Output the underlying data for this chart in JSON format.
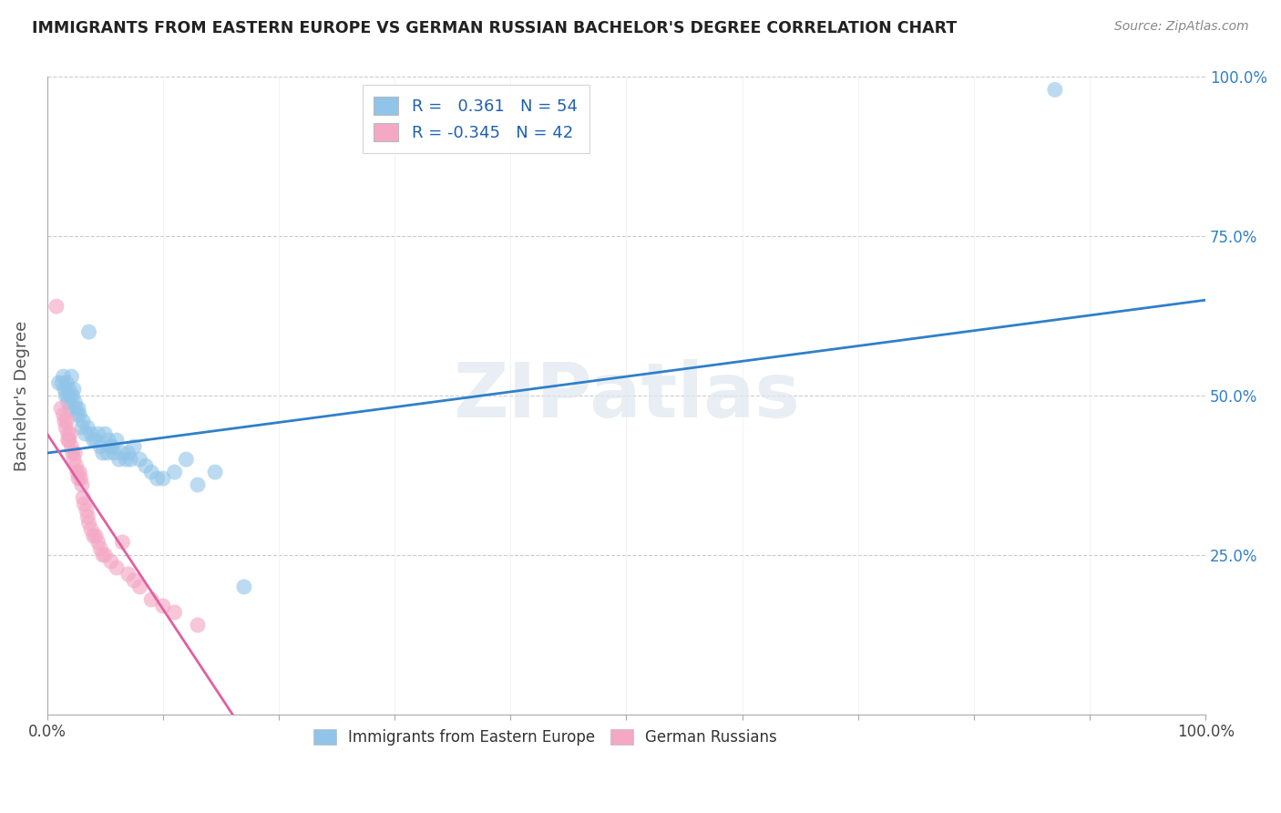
{
  "title": "IMMIGRANTS FROM EASTERN EUROPE VS GERMAN RUSSIAN BACHELOR'S DEGREE CORRELATION CHART",
  "source": "Source: ZipAtlas.com",
  "ylabel": "Bachelor's Degree",
  "xlim": [
    0,
    1.0
  ],
  "ylim": [
    0,
    1.0
  ],
  "yticks": [
    0.0,
    0.25,
    0.5,
    0.75,
    1.0
  ],
  "ytick_labels": [
    "",
    "25.0%",
    "50.0%",
    "75.0%",
    "100.0%"
  ],
  "xticks": [
    0.0,
    0.1,
    0.2,
    0.3,
    0.4,
    0.5,
    0.6,
    0.7,
    0.8,
    0.9,
    1.0
  ],
  "xtick_labels": [
    "0.0%",
    "",
    "",
    "",
    "",
    "",
    "",
    "",
    "",
    "",
    "100.0%"
  ],
  "R_blue": 0.361,
  "N_blue": 54,
  "R_pink": -0.345,
  "N_pink": 42,
  "watermark": "ZIPatlas",
  "blue_color": "#90c4e8",
  "pink_color": "#f4a8c4",
  "blue_line_color": "#3080c8",
  "pink_line_color": "#e060a0",
  "blue_scatter": [
    [
      0.01,
      0.52
    ],
    [
      0.013,
      0.52
    ],
    [
      0.014,
      0.53
    ],
    [
      0.015,
      0.51
    ],
    [
      0.016,
      0.5
    ],
    [
      0.017,
      0.52
    ],
    [
      0.018,
      0.5
    ],
    [
      0.018,
      0.49
    ],
    [
      0.019,
      0.51
    ],
    [
      0.02,
      0.5
    ],
    [
      0.02,
      0.48
    ],
    [
      0.021,
      0.53
    ],
    [
      0.022,
      0.5
    ],
    [
      0.023,
      0.51
    ],
    [
      0.024,
      0.49
    ],
    [
      0.025,
      0.48
    ],
    [
      0.026,
      0.47
    ],
    [
      0.027,
      0.48
    ],
    [
      0.028,
      0.47
    ],
    [
      0.03,
      0.45
    ],
    [
      0.031,
      0.46
    ],
    [
      0.033,
      0.44
    ],
    [
      0.035,
      0.45
    ],
    [
      0.036,
      0.6
    ],
    [
      0.038,
      0.44
    ],
    [
      0.04,
      0.43
    ],
    [
      0.042,
      0.43
    ],
    [
      0.044,
      0.44
    ],
    [
      0.046,
      0.42
    ],
    [
      0.048,
      0.41
    ],
    [
      0.05,
      0.44
    ],
    [
      0.052,
      0.41
    ],
    [
      0.053,
      0.43
    ],
    [
      0.055,
      0.42
    ],
    [
      0.056,
      0.42
    ],
    [
      0.058,
      0.41
    ],
    [
      0.06,
      0.43
    ],
    [
      0.062,
      0.4
    ],
    [
      0.065,
      0.41
    ],
    [
      0.068,
      0.4
    ],
    [
      0.07,
      0.41
    ],
    [
      0.072,
      0.4
    ],
    [
      0.075,
      0.42
    ],
    [
      0.08,
      0.4
    ],
    [
      0.085,
      0.39
    ],
    [
      0.09,
      0.38
    ],
    [
      0.095,
      0.37
    ],
    [
      0.1,
      0.37
    ],
    [
      0.11,
      0.38
    ],
    [
      0.12,
      0.4
    ],
    [
      0.13,
      0.36
    ],
    [
      0.145,
      0.38
    ],
    [
      0.17,
      0.2
    ],
    [
      0.87,
      0.98
    ]
  ],
  "pink_scatter": [
    [
      0.008,
      0.64
    ],
    [
      0.012,
      0.48
    ],
    [
      0.014,
      0.47
    ],
    [
      0.015,
      0.46
    ],
    [
      0.016,
      0.45
    ],
    [
      0.017,
      0.46
    ],
    [
      0.018,
      0.44
    ],
    [
      0.018,
      0.43
    ],
    [
      0.019,
      0.43
    ],
    [
      0.02,
      0.44
    ],
    [
      0.021,
      0.42
    ],
    [
      0.022,
      0.41
    ],
    [
      0.023,
      0.4
    ],
    [
      0.024,
      0.41
    ],
    [
      0.025,
      0.39
    ],
    [
      0.026,
      0.38
    ],
    [
      0.027,
      0.37
    ],
    [
      0.028,
      0.38
    ],
    [
      0.029,
      0.37
    ],
    [
      0.03,
      0.36
    ],
    [
      0.031,
      0.34
    ],
    [
      0.032,
      0.33
    ],
    [
      0.034,
      0.32
    ],
    [
      0.035,
      0.31
    ],
    [
      0.036,
      0.3
    ],
    [
      0.038,
      0.29
    ],
    [
      0.04,
      0.28
    ],
    [
      0.042,
      0.28
    ],
    [
      0.044,
      0.27
    ],
    [
      0.046,
      0.26
    ],
    [
      0.048,
      0.25
    ],
    [
      0.05,
      0.25
    ],
    [
      0.055,
      0.24
    ],
    [
      0.06,
      0.23
    ],
    [
      0.065,
      0.27
    ],
    [
      0.07,
      0.22
    ],
    [
      0.075,
      0.21
    ],
    [
      0.08,
      0.2
    ],
    [
      0.09,
      0.18
    ],
    [
      0.1,
      0.17
    ],
    [
      0.11,
      0.16
    ],
    [
      0.13,
      0.14
    ]
  ],
  "blue_line": [
    [
      0.0,
      0.41
    ],
    [
      1.0,
      0.65
    ]
  ],
  "pink_line": [
    [
      0.0,
      0.44
    ],
    [
      0.16,
      0.0
    ]
  ]
}
